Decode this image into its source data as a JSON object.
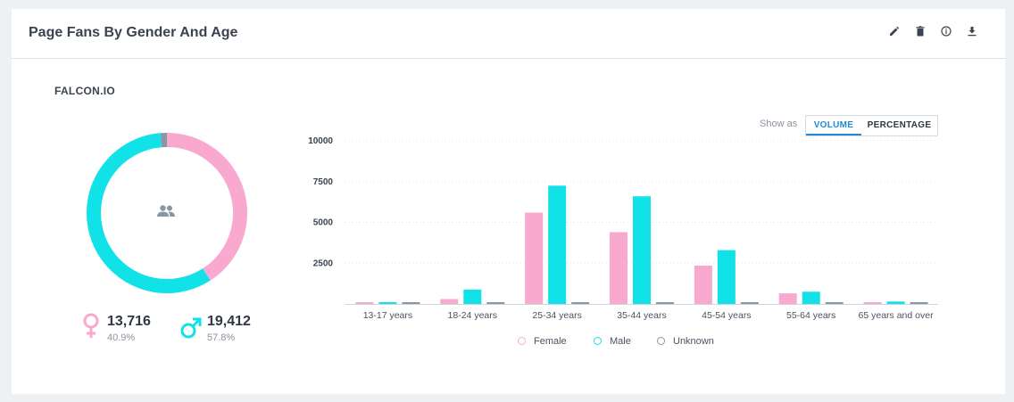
{
  "header": {
    "title": "Page Fans By Gender And Age",
    "actions": [
      {
        "name": "edit-icon"
      },
      {
        "name": "delete-icon"
      },
      {
        "name": "info-icon"
      },
      {
        "name": "download-icon"
      }
    ]
  },
  "brand": "FALCON.IO",
  "summary": {
    "female": {
      "count": "13,716",
      "percent": "40.9%",
      "symbol": "♀",
      "color": "#f9a8d0"
    },
    "male": {
      "count": "19,412",
      "percent": "57.8%",
      "symbol": "♂",
      "color": "#11e2e8"
    },
    "unknown_color": "#8896a6",
    "center_icon": "people-icon"
  },
  "toggle": {
    "label": "Show as",
    "options": [
      "VOLUME",
      "PERCENTAGE"
    ],
    "selected": "VOLUME"
  },
  "chart_data": [
    {
      "type": "pie",
      "style": "donut",
      "categories": [
        "Female",
        "Male",
        "Unknown"
      ],
      "values": [
        40.9,
        57.8,
        1.3
      ],
      "colors": [
        "#f9a8d0",
        "#11e2e8",
        "#8896a6"
      ]
    },
    {
      "type": "bar",
      "categories": [
        "13-17 years",
        "18-24 years",
        "25-34 years",
        "35-44 years",
        "45-54 years",
        "55-64 years",
        "65 years and over"
      ],
      "series": [
        {
          "name": "Female",
          "color": "#f9a8d0",
          "values": [
            80,
            300,
            5600,
            4400,
            2350,
            650,
            100
          ]
        },
        {
          "name": "Male",
          "color": "#11e2e8",
          "values": [
            80,
            880,
            7250,
            6600,
            3300,
            750,
            150
          ]
        },
        {
          "name": "Unknown",
          "color": "#8896a6",
          "values": [
            80,
            80,
            80,
            80,
            80,
            80,
            80
          ]
        }
      ],
      "yticks": [
        "2500",
        "5000",
        "7500",
        "10000"
      ],
      "ylim": [
        0,
        10000
      ],
      "grid": true,
      "legend": "bottom"
    }
  ]
}
